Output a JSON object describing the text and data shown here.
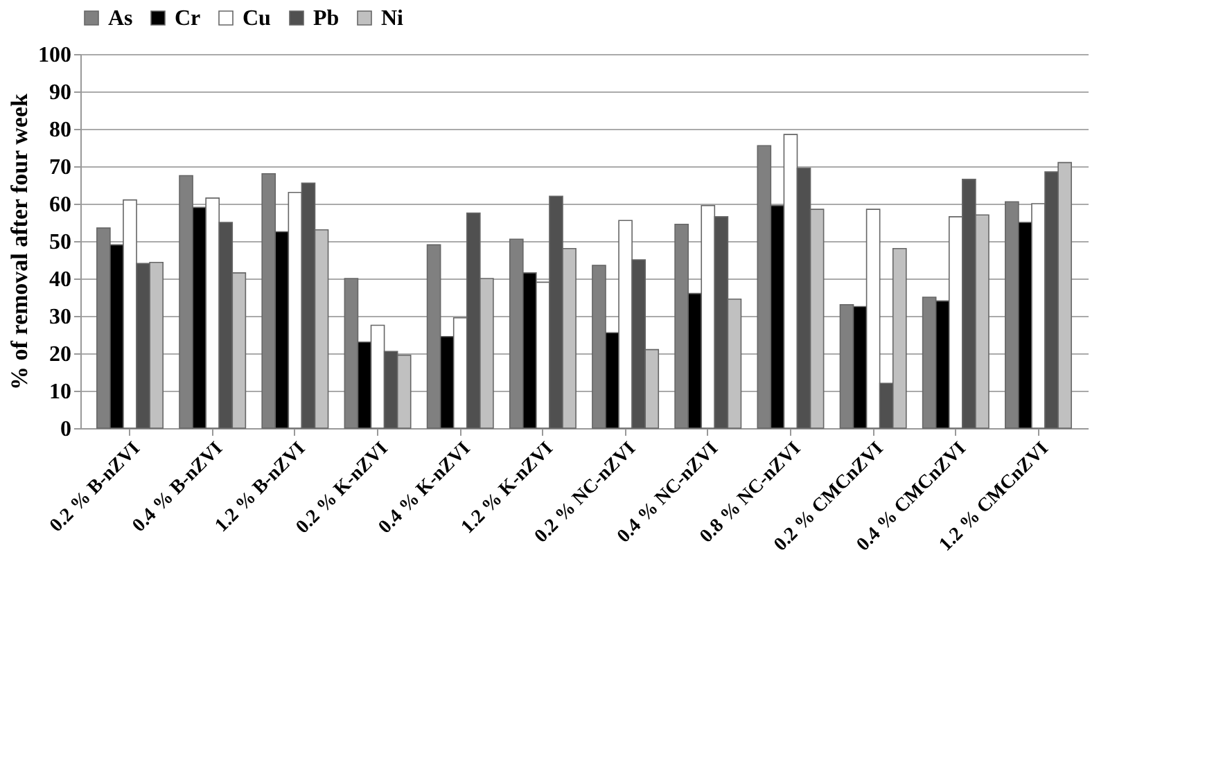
{
  "chart_data": {
    "type": "bar",
    "ylabel": "% of removal after four week",
    "categories": [
      "0.2 % B-nZVI",
      "0.4 % B-nZVI",
      "1.2 % B-nZVI",
      "0.2 % K-nZVI",
      "0.4 % K-nZVI",
      "1.2 % K-nZVI",
      "0.2 % NC-nZVI",
      "0.4 % NC-nZVI",
      "0.8 % NC-nZVI",
      "0.2 % CMCnZVI",
      "0.4 % CMCnZVI",
      "1.2 % CMCnZVI"
    ],
    "series": [
      {
        "name": "As",
        "color": "#808080",
        "values": [
          53.5,
          67.5,
          68,
          40,
          49,
          50.5,
          43.5,
          54.5,
          75.5,
          33,
          35,
          60.5
        ]
      },
      {
        "name": "Cr",
        "color": "#000000",
        "values": [
          49,
          59,
          52.5,
          23,
          24.5,
          41.5,
          25.5,
          36,
          59.5,
          32.5,
          34,
          55
        ]
      },
      {
        "name": "Cu",
        "color": "#ffffff",
        "values": [
          61,
          61.5,
          63,
          27.5,
          29.5,
          39,
          55.5,
          59.5,
          78.5,
          58.5,
          56.5,
          60
        ]
      },
      {
        "name": "Pb",
        "color": "#505050",
        "values": [
          44,
          55,
          65.5,
          20.5,
          57.5,
          62,
          45,
          56.5,
          69.5,
          12,
          66.5,
          68.5
        ]
      },
      {
        "name": "Ni",
        "color": "#c0c0c0",
        "values": [
          44.3,
          41.5,
          53,
          19.5,
          40,
          48,
          21,
          34.5,
          58.5,
          48,
          57,
          71
        ]
      }
    ],
    "ylim": [
      0,
      100
    ],
    "yticks": [
      0,
      10,
      20,
      30,
      40,
      50,
      60,
      70,
      80,
      90,
      100
    ],
    "grid": "y",
    "legend": "top"
  }
}
